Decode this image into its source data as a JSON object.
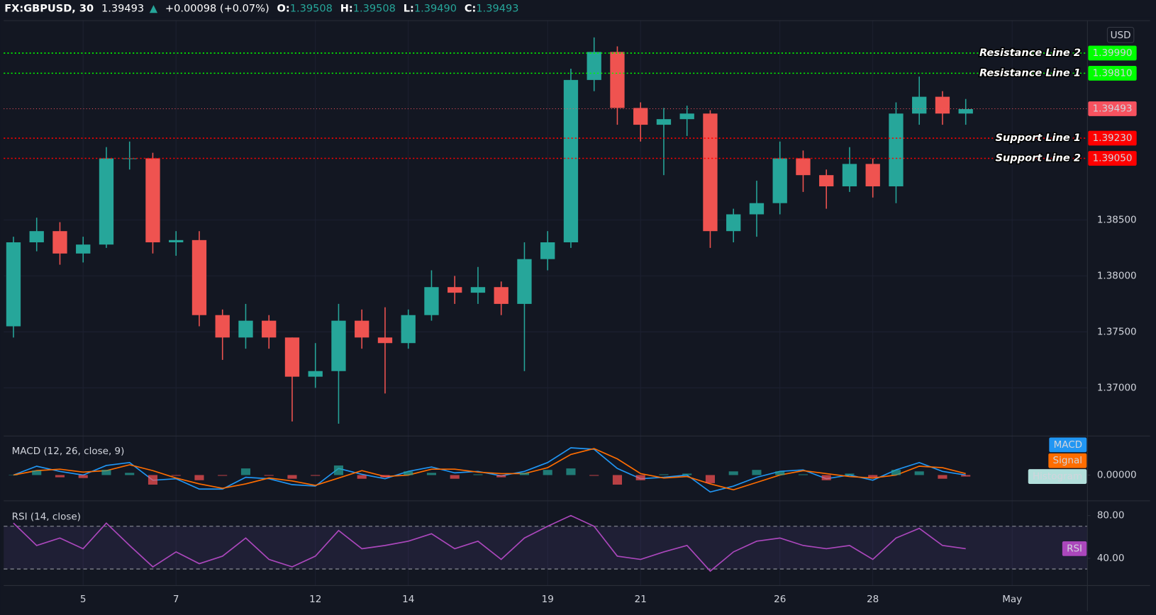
{
  "header": {
    "symbol": "FX:GBPUSD, 30",
    "last": "1.39493",
    "arrow": "▲",
    "change": "+0.00098 (+0.07%)",
    "ohlc": [
      {
        "label": "O:",
        "value": "1.39508"
      },
      {
        "label": "H:",
        "value": "1.39508"
      },
      {
        "label": "L:",
        "value": "1.39490"
      },
      {
        "label": "C:",
        "value": "1.39493"
      }
    ]
  },
  "chart_data": [
    {
      "type": "candlestick",
      "currency": "USD",
      "x": [
        -1.5,
        -1,
        -0.5,
        0,
        0.5,
        1,
        1.5,
        2,
        2.5,
        3,
        3.5,
        4,
        4.5,
        5,
        5.5,
        6,
        6.5,
        7,
        7.5,
        8,
        8.5,
        9,
        9.5,
        10,
        10.5,
        11,
        11.5,
        12,
        12.5,
        13,
        13.5,
        14,
        14.5,
        15,
        15.5,
        16,
        16.5,
        17,
        17.5,
        18,
        18.5,
        19
      ],
      "open": [
        1.3755,
        1.383,
        1.384,
        1.382,
        1.3828,
        1.3905,
        1.3905,
        1.383,
        1.3832,
        1.3765,
        1.3745,
        1.376,
        1.3745,
        1.371,
        1.3715,
        1.376,
        1.3745,
        1.374,
        1.3765,
        1.379,
        1.3785,
        1.379,
        1.3775,
        1.3815,
        1.383,
        1.3975,
        1.4,
        1.395,
        1.3935,
        1.394,
        1.3945,
        1.384,
        1.3855,
        1.3865,
        1.3905,
        1.389,
        1.388,
        1.39,
        1.388,
        1.3945,
        1.396,
        1.3945
      ],
      "high": [
        1.3835,
        1.3852,
        1.3848,
        1.3835,
        1.3915,
        1.392,
        1.391,
        1.384,
        1.384,
        1.377,
        1.3775,
        1.3765,
        1.3745,
        1.374,
        1.3775,
        1.377,
        1.3772,
        1.377,
        1.3805,
        1.38,
        1.3808,
        1.3795,
        1.383,
        1.384,
        1.3985,
        1.4013,
        1.4005,
        1.3955,
        1.395,
        1.3952,
        1.3948,
        1.386,
        1.3885,
        1.392,
        1.3912,
        1.3895,
        1.3915,
        1.3905,
        1.3955,
        1.3978,
        1.3965,
        1.3958
      ],
      "low": [
        1.3745,
        1.3822,
        1.381,
        1.3812,
        1.3825,
        1.3895,
        1.382,
        1.3818,
        1.3755,
        1.3725,
        1.3735,
        1.3735,
        1.367,
        1.37,
        1.3668,
        1.3735,
        1.3695,
        1.3735,
        1.376,
        1.3775,
        1.3775,
        1.3765,
        1.3715,
        1.3805,
        1.3825,
        1.3965,
        1.3935,
        1.392,
        1.389,
        1.3925,
        1.3825,
        1.383,
        1.3835,
        1.3855,
        1.3875,
        1.386,
        1.3875,
        1.387,
        1.3865,
        1.3935,
        1.3935,
        1.3935
      ],
      "close": [
        1.383,
        1.384,
        1.382,
        1.3828,
        1.3905,
        1.3905,
        1.383,
        1.3832,
        1.3765,
        1.3745,
        1.376,
        1.3745,
        1.371,
        1.3715,
        1.376,
        1.3745,
        1.374,
        1.3765,
        1.379,
        1.3785,
        1.379,
        1.3775,
        1.3815,
        1.383,
        1.3975,
        1.4,
        1.395,
        1.3935,
        1.394,
        1.3945,
        1.384,
        1.3855,
        1.3865,
        1.3905,
        1.389,
        1.388,
        1.39,
        1.388,
        1.3945,
        1.396,
        1.3945,
        1.3949
      ],
      "up_color": "#26a69a",
      "down_color": "#ef5350",
      "xlim": [
        -1.71,
        21.62
      ],
      "ylim": [
        1.3657,
        1.4028
      ],
      "yticks": [
        {
          "value": 1.37,
          "label": "1.37000"
        },
        {
          "value": 1.375,
          "label": "1.37500"
        },
        {
          "value": 1.38,
          "label": "1.38000"
        },
        {
          "value": 1.385,
          "label": "1.38500"
        }
      ],
      "grid": true,
      "lines": [
        {
          "name": "Resistance Line 2",
          "value": 1.3999,
          "value_label": "1.39990",
          "color": "#00ff00",
          "label_text_color": "#000000"
        },
        {
          "name": "Resistance Line 1",
          "value": 1.3981,
          "value_label": "1.39810",
          "color": "#00ff00",
          "label_text_color": "#000000"
        },
        {
          "value": 1.39493,
          "value_label": "1.39493",
          "color": "#f7525f",
          "label_text_color": "#ffffff"
        },
        {
          "name": "Support Line 1",
          "value": 1.3923,
          "value_label": "1.39230",
          "color": "#ff0000",
          "label_text_color": "#ffffff"
        },
        {
          "name": "Support Line 2",
          "value": 1.3905,
          "value_label": "1.39050",
          "color": "#ff0000",
          "label_text_color": "#ffffff"
        }
      ]
    },
    {
      "type": "line",
      "title": "MACD (12, 26, close, 9)",
      "x": [
        -1.5,
        -1,
        -0.5,
        0,
        0.5,
        1,
        1.5,
        2,
        2.5,
        3,
        3.5,
        4,
        4.5,
        5,
        5.5,
        6,
        6.5,
        7,
        7.5,
        8,
        8.5,
        9,
        9.5,
        10,
        10.5,
        11,
        11.5,
        12,
        12.5,
        13,
        13.5,
        14,
        14.5,
        15,
        15.5,
        16,
        16.5,
        17,
        17.5,
        18,
        18.5,
        19
      ],
      "series": [
        {
          "name": "MACD",
          "color": "#2196f3",
          "values": [
            0,
            0.0006,
            0.00025,
            0,
            0.00065,
            0.00085,
            -0.00035,
            -0.00025,
            -0.00095,
            -0.00095,
            -0.00015,
            -0.00025,
            -0.00065,
            -0.00075,
            0.00045,
            5e-05,
            -0.00025,
            0.00025,
            0.00055,
            0.00015,
            0.00025,
            -5e-05,
            0.00025,
            0.00085,
            0.00185,
            0.00175,
            0.00045,
            -0.00025,
            -0.00015,
            0,
            -0.00115,
            -0.00075,
            -0.00015,
            0.00025,
            0.00035,
            -0.00025,
            0,
            -0.00035,
            0.00035,
            0.00085,
            0.00025,
            0
          ]
        },
        {
          "name": "Signal",
          "color": "#ff6d00",
          "values": [
            0,
            0.0003,
            0.0004,
            0.0002,
            0.0003,
            0.0007,
            0.0003,
            -0.0002,
            -0.0006,
            -0.0009,
            -0.0006,
            -0.0002,
            -0.0004,
            -0.0007,
            -0.0002,
            0.0003,
            -0.0001,
            0,
            0.0004,
            0.0004,
            0.0002,
            0.0001,
            0.0001,
            0.0005,
            0.0014,
            0.0018,
            0.0011,
            0.0001,
            -0.0002,
            -0.0001,
            -0.0006,
            -0.001,
            -0.0005,
            0,
            0.0003,
            0.0001,
            -0.0001,
            -0.0002,
            0,
            0.0006,
            0.0005,
            0.0001
          ]
        },
        {
          "name": "Histogram",
          "type": "bar",
          "color": "#b2dfdb",
          "up_color": "#26a69a",
          "down_color": "#ff5252",
          "values": [
            0,
            0.0003,
            -0.00015,
            -0.0002,
            0.00035,
            0.00015,
            -0.00065,
            -5e-05,
            -0.00035,
            -5e-05,
            0.00045,
            -5e-05,
            -0.00025,
            -5e-05,
            0.00065,
            -0.00025,
            -0.00015,
            0.00025,
            0.00015,
            -0.00025,
            5e-05,
            -0.00015,
            0.00015,
            0.00035,
            0.00045,
            -5e-05,
            -0.00065,
            -0.00035,
            5e-05,
            0.0001,
            -0.00055,
            0.00025,
            0.00035,
            0.00025,
            5e-05,
            -0.00035,
            0.0001,
            -0.00015,
            0.00035,
            0.00025,
            -0.00025,
            -0.0001
          ]
        }
      ],
      "xlim": [
        -1.71,
        21.62
      ],
      "ylim": [
        -0.00175,
        0.00265
      ],
      "yticks": [
        {
          "value": 0,
          "label": "0.00000"
        }
      ]
    },
    {
      "type": "line",
      "title": "RSI (14, close)",
      "x": [
        -1.5,
        -1,
        -0.5,
        0,
        0.5,
        1,
        1.5,
        2,
        2.5,
        3,
        3.5,
        4,
        4.5,
        5,
        5.5,
        6,
        6.5,
        7,
        7.5,
        8,
        8.5,
        9,
        9.5,
        10,
        10.5,
        11,
        11.5,
        12,
        12.5,
        13,
        13.5,
        14,
        14.5,
        15,
        15.5,
        16,
        16.5,
        17,
        17.5,
        18,
        18.5,
        19
      ],
      "series": [
        {
          "name": "RSI",
          "color": "#ab47bc",
          "values": [
            73,
            52,
            59,
            49,
            73,
            52,
            32,
            46,
            35,
            42,
            59,
            39,
            32,
            42,
            66,
            49,
            52,
            56,
            63,
            49,
            56,
            39,
            59,
            70,
            80,
            70,
            42,
            39,
            46,
            52,
            28,
            46,
            56,
            59,
            52,
            49,
            52,
            39,
            59,
            68,
            52,
            49
          ]
        }
      ],
      "band": [
        30,
        70
      ],
      "band_color": "#7e57c2",
      "xlim": [
        -1.71,
        21.62
      ],
      "ylim": [
        14.5,
        93.8
      ],
      "yticks": [
        {
          "value": 40,
          "label": "40.00"
        },
        {
          "value": 80,
          "label": "80.00"
        }
      ],
      "xticks": [
        {
          "value": 0,
          "label": "5"
        },
        {
          "value": 2,
          "label": "7"
        },
        {
          "value": 5,
          "label": "12"
        },
        {
          "value": 7,
          "label": "14"
        },
        {
          "value": 10,
          "label": "19"
        },
        {
          "value": 12,
          "label": "21"
        },
        {
          "value": 15,
          "label": "26"
        },
        {
          "value": 17,
          "label": "28"
        },
        {
          "value": 20,
          "label": "May"
        }
      ]
    }
  ]
}
